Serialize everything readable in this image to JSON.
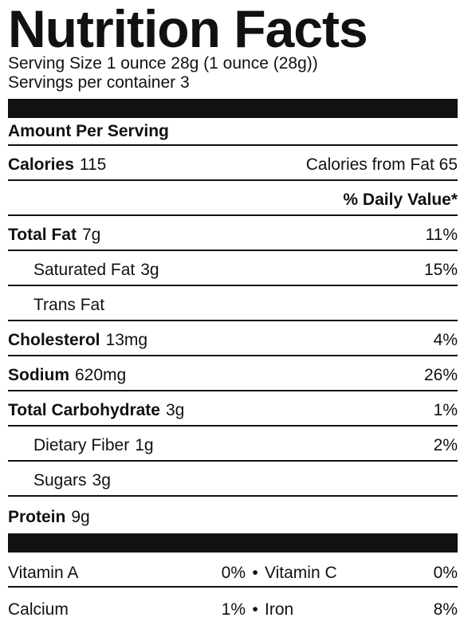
{
  "title": "Nutrition Facts",
  "serving_size": "Serving Size 1 ounce 28g (1 ounce (28g))",
  "servings_per_container": "Servings per container 3",
  "amount_per_serving": "Amount Per Serving",
  "calories": {
    "label": "Calories",
    "value": "115",
    "from_fat": "Calories from Fat 65"
  },
  "daily_value_header": "% Daily Value*",
  "nutrients": [
    {
      "label": "Total Fat",
      "amount": "7g",
      "dv": "11%"
    },
    {
      "label": "Saturated Fat",
      "amount": "3g",
      "dv": "15%"
    },
    {
      "label": "Trans Fat",
      "amount": "",
      "dv": ""
    },
    {
      "label": "Cholesterol",
      "amount": "13mg",
      "dv": "4%"
    },
    {
      "label": "Sodium",
      "amount": "620mg",
      "dv": "26%"
    },
    {
      "label": "Total Carbohydrate",
      "amount": "3g",
      "dv": "1%"
    },
    {
      "label": "Dietary Fiber",
      "amount": "1g",
      "dv": "2%"
    },
    {
      "label": "Sugars",
      "amount": "3g",
      "dv": ""
    },
    {
      "label": "Protein",
      "amount": "9g",
      "dv": ""
    }
  ],
  "vitamins": [
    {
      "left_label": "Vitamin A",
      "left_value": "0%",
      "separator": "•",
      "right_label": "Vitamin C",
      "right_value": "0%"
    },
    {
      "left_label": "Calcium",
      "left_value": "1%",
      "separator": "•",
      "right_label": "Iron",
      "right_value": "8%"
    }
  ]
}
